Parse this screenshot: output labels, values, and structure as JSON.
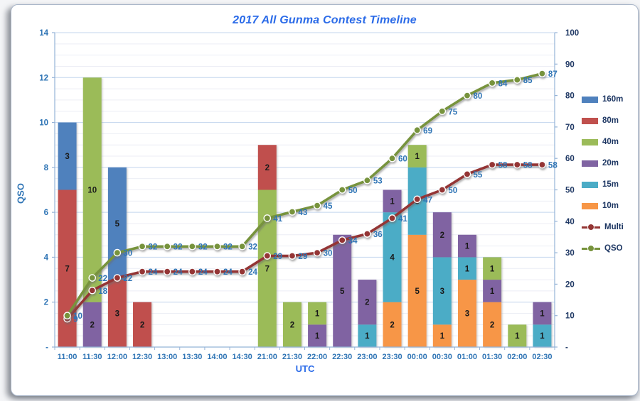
{
  "title": "2017 All Gunma Contest Timeline",
  "colors": {
    "title_text": "#2B6BE8",
    "axis_tick_text": "#2E74B5",
    "right_axis_text": "#1F3864",
    "legend_text": "#1F3864",
    "bar_label_text": "#1a1a1a",
    "line_label_text": "#2E74B5",
    "gridline_major": "#c3d5ee",
    "gridline_minor": "#ecaeff0",
    "gridline_minor_fix": "#eceef5",
    "axis_line": "#95B3D7",
    "card_border": "#a9b6c9"
  },
  "chart_data": {
    "type": "combo: stacked-bar + line",
    "categories": [
      "11:00",
      "11:30",
      "12:00",
      "12:30",
      "13:00",
      "13:30",
      "14:00",
      "14:30",
      "21:00",
      "21:30",
      "22:00",
      "22:30",
      "23:00",
      "23:30",
      "00:00",
      "00:30",
      "01:00",
      "01:30",
      "02:00",
      "02:30"
    ],
    "x_axis": {
      "title": "UTC"
    },
    "left_axis": {
      "title": "QSO",
      "min": 0,
      "max": 14,
      "major_unit": 2,
      "minor_unit": 0.5,
      "tick_labels": [
        "-",
        "2",
        "4",
        "6",
        "8",
        "10",
        "12",
        "14"
      ],
      "tick_values": [
        0,
        2,
        4,
        6,
        8,
        10,
        12,
        14
      ]
    },
    "right_axis": {
      "min": 0,
      "max": 100,
      "major_unit": 10,
      "tick_labels": [
        "-",
        "10",
        "20",
        "30",
        "40",
        "50",
        "60",
        "70",
        "80",
        "90",
        "100"
      ],
      "tick_values": [
        0,
        10,
        20,
        30,
        40,
        50,
        60,
        70,
        80,
        90,
        100
      ]
    },
    "bar_series": [
      {
        "name": "160m",
        "color": "#4F81BD",
        "values": [
          3,
          0,
          5,
          0,
          0,
          0,
          0,
          0,
          0,
          0,
          0,
          0,
          0,
          0,
          0,
          0,
          0,
          0,
          0,
          0
        ]
      },
      {
        "name": "80m",
        "color": "#C0504D",
        "values": [
          7,
          0,
          3,
          2,
          0,
          0,
          0,
          0,
          2,
          0,
          0,
          0,
          0,
          0,
          0,
          0,
          0,
          0,
          0,
          0
        ]
      },
      {
        "name": "40m",
        "color": "#9BBB59",
        "values": [
          0,
          10,
          0,
          0,
          0,
          0,
          0,
          0,
          7,
          2,
          1,
          0,
          0,
          0,
          1,
          0,
          0,
          1,
          1,
          0
        ]
      },
      {
        "name": "20m",
        "color": "#8064A2",
        "values": [
          0,
          2,
          0,
          0,
          0,
          0,
          0,
          0,
          0,
          0,
          1,
          5,
          2,
          1,
          0,
          2,
          1,
          1,
          0,
          1
        ]
      },
      {
        "name": "15m",
        "color": "#4BACC6",
        "values": [
          0,
          0,
          0,
          0,
          0,
          0,
          0,
          0,
          0,
          0,
          0,
          0,
          1,
          4,
          3,
          3,
          1,
          0,
          0,
          1
        ]
      },
      {
        "name": "10m",
        "color": "#F79646",
        "values": [
          0,
          0,
          0,
          0,
          0,
          0,
          0,
          0,
          0,
          0,
          0,
          0,
          0,
          2,
          5,
          1,
          3,
          2,
          0,
          0
        ]
      }
    ],
    "stack_order_bottom_to_top": [
      "10m",
      "15m",
      "20m",
      "40m",
      "80m",
      "160m"
    ],
    "line_series": [
      {
        "name": "Multi",
        "color": "#943634",
        "axis": "right",
        "values": [
          9,
          18,
          22,
          24,
          24,
          24,
          24,
          24,
          29,
          29,
          30,
          34,
          36,
          41,
          47,
          50,
          55,
          58,
          58,
          58
        ]
      },
      {
        "name": "QSO",
        "color": "#77933C",
        "axis": "right",
        "values": [
          10,
          22,
          30,
          32,
          32,
          32,
          32,
          32,
          41,
          43,
          45,
          50,
          53,
          60,
          69,
          75,
          80,
          84,
          85,
          87
        ]
      }
    ],
    "legend": {
      "position": "right",
      "items": [
        "160m",
        "80m",
        "40m",
        "20m",
        "15m",
        "10m",
        "Multi",
        "QSO"
      ]
    },
    "grid": "major + minor horizontal gridlines"
  }
}
